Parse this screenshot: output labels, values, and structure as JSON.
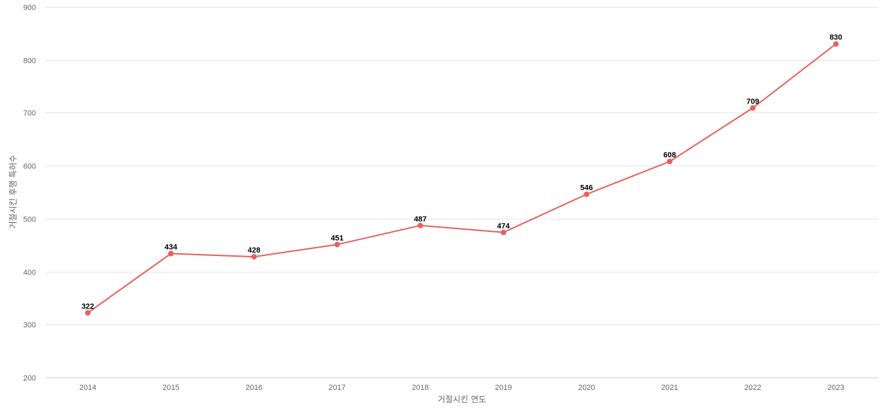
{
  "chart_data": {
    "type": "line",
    "title": "",
    "xlabel": "거절시킨 연도",
    "ylabel": "거절시킨 후행 특허수",
    "x": [
      "2014",
      "2015",
      "2016",
      "2017",
      "2018",
      "2019",
      "2020",
      "2021",
      "2022",
      "2023"
    ],
    "series": [
      {
        "values": [
          322,
          434,
          428,
          451,
          487,
          474,
          546,
          608,
          709,
          830
        ],
        "color": "#e8605c"
      }
    ],
    "ylim": [
      200,
      900
    ],
    "yticks": [
      200,
      300,
      400,
      500,
      600,
      700,
      800,
      900
    ],
    "grid": true,
    "legend": "none",
    "data_labels": true
  }
}
